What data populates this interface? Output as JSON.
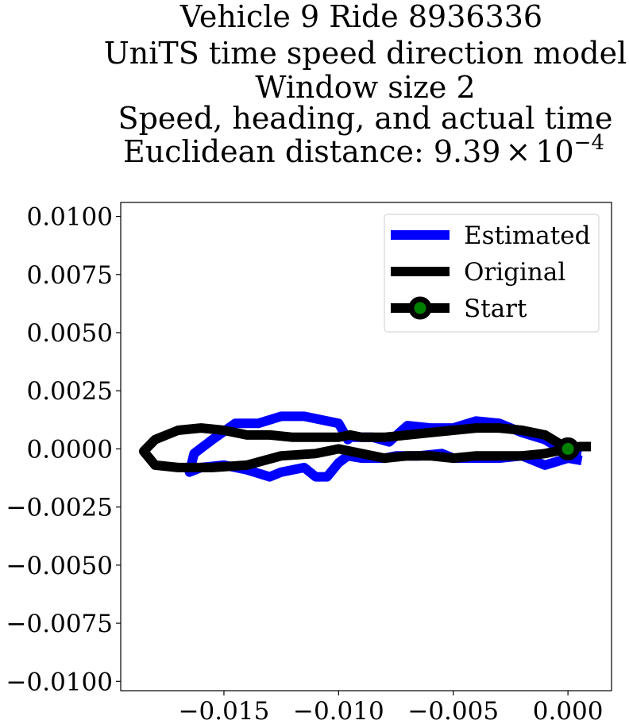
{
  "chart_data": {
    "type": "line",
    "title_lines": [
      "Vehicle 9 Ride 8936336",
      "UniTS time speed direction model",
      "Window size 2",
      "Speed, heading, and actual time"
    ],
    "title_distance_prefix": "Euclidean distance: ",
    "title_distance_mantissa": "9.39",
    "title_distance_times": "×",
    "title_distance_base": "10",
    "title_distance_exponent": "−4",
    "xlim": [
      -0.0195,
      0.0019
    ],
    "ylim": [
      -0.0104,
      0.0106
    ],
    "x_ticks": [
      {
        "value": -0.015,
        "label": "−0.015"
      },
      {
        "value": -0.01,
        "label": "−0.010"
      },
      {
        "value": -0.005,
        "label": "−0.005"
      },
      {
        "value": 0.0,
        "label": "0.000"
      }
    ],
    "y_ticks": [
      {
        "value": 0.01,
        "label": "0.0100"
      },
      {
        "value": 0.0075,
        "label": "0.0075"
      },
      {
        "value": 0.005,
        "label": "0.0050"
      },
      {
        "value": 0.0025,
        "label": "0.0025"
      },
      {
        "value": 0.0,
        "label": "0.0000"
      },
      {
        "value": -0.0025,
        "label": "−0.0025"
      },
      {
        "value": -0.005,
        "label": "−0.0050"
      },
      {
        "value": -0.0075,
        "label": "−0.0075"
      },
      {
        "value": -0.01,
        "label": "−0.0100"
      }
    ],
    "grid": false,
    "legend_position": "top-right",
    "series": [
      {
        "name": "Estimated",
        "color": "#0000ff",
        "x": [
          0.0006,
          0.0,
          -0.001,
          -0.002,
          -0.003,
          -0.004,
          -0.005,
          -0.0055,
          -0.0065,
          -0.0075,
          -0.008,
          -0.009,
          -0.0096,
          -0.01,
          -0.0105,
          -0.011,
          -0.0115,
          -0.0125,
          -0.013,
          -0.014,
          -0.015,
          -0.016,
          -0.0165,
          -0.0163,
          -0.0155,
          -0.0145,
          -0.0135,
          -0.0125,
          -0.0115,
          -0.01,
          -0.0096,
          -0.0095,
          -0.0085,
          -0.0078,
          -0.007,
          -0.006,
          -0.005,
          -0.004,
          -0.003,
          -0.002,
          -0.001,
          -0.0005,
          0.0,
          0.0006
        ],
        "y": [
          -0.0005,
          -0.0004,
          -0.0007,
          -0.0003,
          -0.0004,
          -0.0004,
          -0.0004,
          -0.0002,
          -0.0003,
          -0.0003,
          -0.0004,
          -0.0004,
          -0.0003,
          -0.0006,
          -0.0012,
          -0.0012,
          -0.0008,
          -0.001,
          -0.0012,
          -0.0009,
          -0.0007,
          -0.0008,
          -0.001,
          -0.0002,
          0.0004,
          0.0011,
          0.0011,
          0.0014,
          0.0014,
          0.0011,
          0.0004,
          0.0005,
          0.0005,
          0.0003,
          0.001,
          0.0009,
          0.0009,
          0.0012,
          0.0011,
          0.0007,
          0.0004,
          0.0001,
          0.0,
          -0.0001
        ]
      },
      {
        "name": "Original",
        "color": "#000000",
        "x": [
          0.001,
          0.0005,
          0.0,
          -0.001,
          -0.002,
          -0.003,
          -0.004,
          -0.005,
          -0.006,
          -0.007,
          -0.008,
          -0.009,
          -0.01,
          -0.0105,
          -0.011,
          -0.0125,
          -0.014,
          -0.0155,
          -0.017,
          -0.018,
          -0.0185,
          -0.018,
          -0.017,
          -0.016,
          -0.015,
          -0.014,
          -0.013,
          -0.012,
          -0.011,
          -0.01,
          -0.0095,
          -0.009,
          -0.008,
          -0.007,
          -0.006,
          -0.005,
          -0.004,
          -0.003,
          -0.002,
          -0.001,
          -0.0005,
          0.0
        ],
        "y": [
          0.0001,
          0.0001,
          0.0,
          -0.0002,
          -0.0003,
          -0.0003,
          -0.0003,
          -0.0004,
          -0.0003,
          -0.0003,
          -0.0004,
          -0.0002,
          0.0,
          -0.0001,
          -0.0002,
          -0.0003,
          -0.0007,
          -0.0008,
          -0.0008,
          -0.0007,
          -0.0001,
          0.0004,
          0.0008,
          0.0009,
          0.0008,
          0.0006,
          0.0006,
          0.0005,
          0.0005,
          0.0005,
          0.0006,
          0.0005,
          0.0005,
          0.0006,
          0.0007,
          0.0008,
          0.0009,
          0.0009,
          0.0008,
          0.0006,
          0.0003,
          0.0
        ]
      }
    ],
    "start_marker": {
      "name": "Start",
      "x": 0.0,
      "y": 0.0,
      "face_color": "#008000",
      "edge_color": "#000000"
    }
  }
}
